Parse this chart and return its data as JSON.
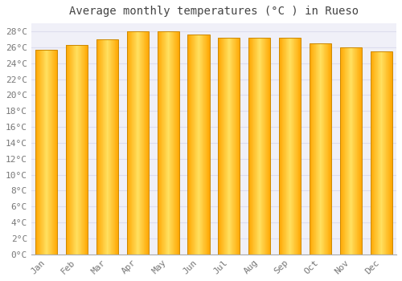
{
  "title": "Average monthly temperatures (°C ) in Rueso",
  "months": [
    "Jan",
    "Feb",
    "Mar",
    "Apr",
    "May",
    "Jun",
    "Jul",
    "Aug",
    "Sep",
    "Oct",
    "Nov",
    "Dec"
  ],
  "values": [
    25.7,
    26.3,
    27.0,
    28.0,
    28.0,
    27.6,
    27.2,
    27.2,
    27.2,
    26.5,
    26.0,
    25.5
  ],
  "ylim": [
    0,
    29
  ],
  "yticks": [
    0,
    2,
    4,
    6,
    8,
    10,
    12,
    14,
    16,
    18,
    20,
    22,
    24,
    26,
    28
  ],
  "ytick_labels": [
    "0°C",
    "2°C",
    "4°C",
    "6°C",
    "8°C",
    "10°C",
    "12°C",
    "14°C",
    "16°C",
    "18°C",
    "20°C",
    "22°C",
    "24°C",
    "26°C",
    "28°C"
  ],
  "bar_color_center": "#FFD700",
  "bar_color_edge": "#FFA500",
  "bar_outline_color": "#CC8800",
  "background_color": "#FFFFFF",
  "plot_bg_color": "#F0F0F8",
  "grid_color": "#DDDDEE",
  "title_fontsize": 10,
  "tick_fontsize": 8,
  "title_color": "#444444",
  "tick_color": "#777777",
  "figsize": [
    5.0,
    3.5
  ],
  "dpi": 100
}
